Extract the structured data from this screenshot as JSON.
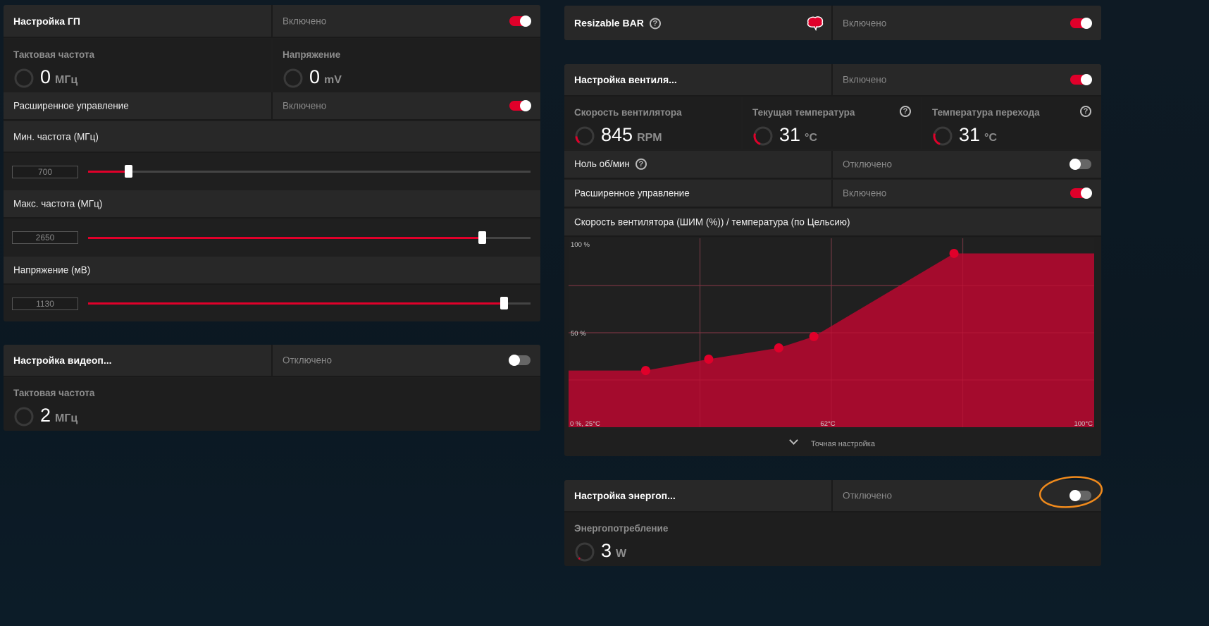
{
  "gpu_tuning": {
    "title": "Настройка ГП",
    "state": "Включено",
    "clock_label": "Такτовая частота",
    "clock_value": "0",
    "clock_unit": "МГц",
    "voltage_label": "Напряжение",
    "voltage_value": "0",
    "voltage_unit": "mV",
    "advanced_label": "Расширенное управление",
    "advanced_state": "Включено",
    "min_label": "Мин. частота (МГц)",
    "min_value": "700",
    "min_fraction": 0.09,
    "max_label": "Макс. частота (МГц)",
    "max_value": "2650",
    "max_fraction": 0.89,
    "volt_label": "Напряжение (мВ)",
    "volt_value": "1130",
    "volt_fraction": 0.94
  },
  "vram_tuning": {
    "title": "Настройка видеоп...",
    "state": "Отключено",
    "clock_label": "Тактовая частота",
    "clock_value": "2",
    "clock_unit": "МГц"
  },
  "rebar": {
    "title": "Resizable BAR",
    "state": "Включено",
    "help": "?"
  },
  "fan_tuning": {
    "title": "Настройка вентиля...",
    "state": "Включено",
    "speed_label": "Скорость вентилятора",
    "speed_value": "845",
    "speed_unit": "RPM",
    "temp_label": "Текущая температура",
    "temp_value": "31",
    "temp_unit": "°C",
    "junction_label": "Температура перехода",
    "junction_value": "31",
    "junction_unit": "°C",
    "zero_rpm_label": "Ноль об/мин",
    "zero_rpm_state": "Отключено",
    "advanced_label": "Расширенное управление",
    "advanced_state": "Включено",
    "curve_title": "Скорость вентилятора (ШИМ (%)) / температура (по Цельсию)",
    "fine_tune": "Точная настройка"
  },
  "power_tuning": {
    "title": "Настройка энергоп...",
    "state": "Отключено",
    "power_label": "Энергопотребление",
    "power_value": "3",
    "power_unit": "W"
  },
  "colors": {
    "accent": "#e0002a",
    "area": "#ae0a2e"
  },
  "chart_data": {
    "type": "area",
    "title": "Скорость вентилятора (ШИМ (%)) / температура (по Цельсию)",
    "xlim": [
      25,
      100
    ],
    "ylim": [
      0,
      100
    ],
    "x_tick_labels": [
      "0 %, 25°C",
      "62°C",
      "100°C"
    ],
    "y_tick_labels": [
      "100 %",
      "50 %"
    ],
    "points": [
      {
        "temp": 36,
        "pwm": 30
      },
      {
        "temp": 45,
        "pwm": 36
      },
      {
        "temp": 55,
        "pwm": 42
      },
      {
        "temp": 60,
        "pwm": 48
      },
      {
        "temp": 80,
        "pwm": 92
      }
    ]
  }
}
